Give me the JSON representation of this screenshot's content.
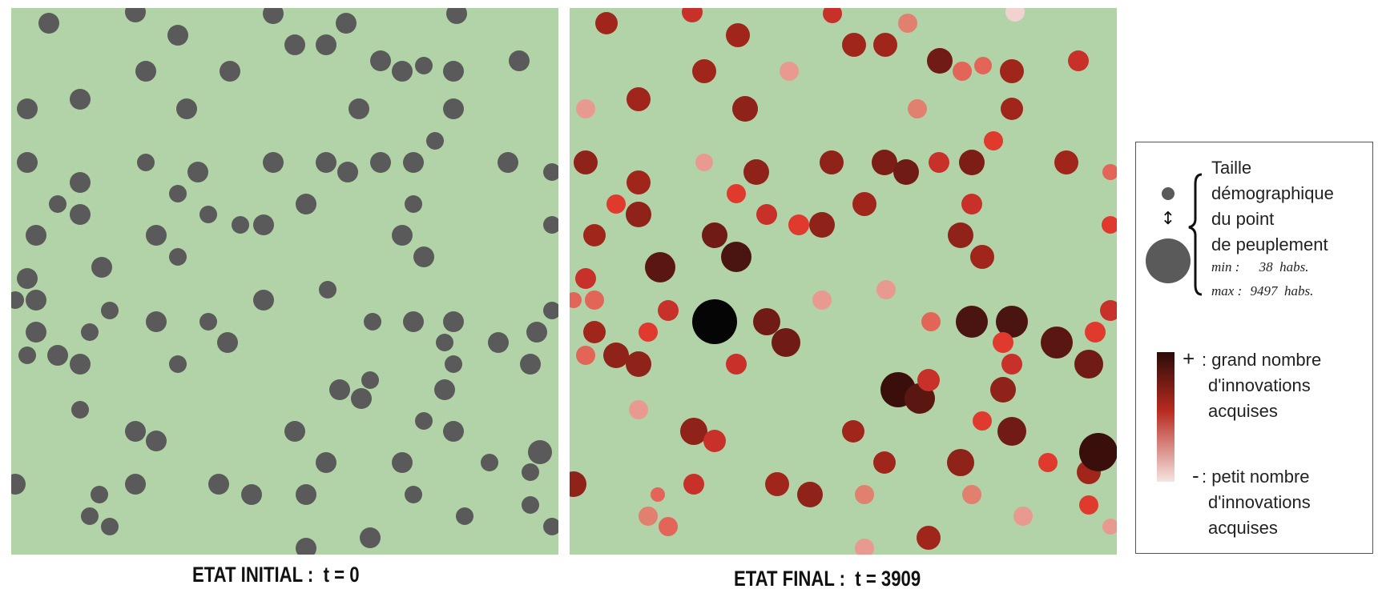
{
  "panels": {
    "initial": {
      "caption_label": "ETAT INITIAL :",
      "caption_value": "t = 0",
      "dot_color": "#5a5a5a",
      "background": "#b1d3a7",
      "points": [
        [
          47,
          19,
          13
        ],
        [
          155,
          5,
          13
        ],
        [
          208,
          34,
          13
        ],
        [
          327,
          7,
          13
        ],
        [
          354,
          46,
          13
        ],
        [
          393,
          46,
          13
        ],
        [
          418,
          19,
          13
        ],
        [
          556,
          7,
          13
        ],
        [
          168,
          79,
          13
        ],
        [
          273,
          79,
          13
        ],
        [
          461,
          66,
          13
        ],
        [
          488,
          79,
          13
        ],
        [
          515,
          72,
          11
        ],
        [
          552,
          79,
          13
        ],
        [
          634,
          66,
          13
        ],
        [
          20,
          126,
          13
        ],
        [
          86,
          114,
          13
        ],
        [
          219,
          126,
          13
        ],
        [
          434,
          126,
          13
        ],
        [
          552,
          126,
          13
        ],
        [
          20,
          193,
          13
        ],
        [
          168,
          193,
          11
        ],
        [
          233,
          205,
          13
        ],
        [
          327,
          193,
          13
        ],
        [
          393,
          193,
          13
        ],
        [
          420,
          205,
          13
        ],
        [
          461,
          193,
          13
        ],
        [
          502,
          193,
          13
        ],
        [
          529,
          166,
          11
        ],
        [
          620,
          193,
          13
        ],
        [
          675,
          205,
          11
        ],
        [
          86,
          218,
          13
        ],
        [
          58,
          245,
          11
        ],
        [
          86,
          258,
          13
        ],
        [
          208,
          232,
          11
        ],
        [
          246,
          258,
          11
        ],
        [
          286,
          271,
          11
        ],
        [
          315,
          271,
          13
        ],
        [
          368,
          245,
          13
        ],
        [
          502,
          245,
          11
        ],
        [
          31,
          284,
          13
        ],
        [
          181,
          284,
          13
        ],
        [
          208,
          311,
          11
        ],
        [
          488,
          284,
          13
        ],
        [
          515,
          311,
          13
        ],
        [
          675,
          271,
          11
        ],
        [
          113,
          324,
          13
        ],
        [
          20,
          338,
          13
        ],
        [
          395,
          352,
          11
        ],
        [
          31,
          365,
          13
        ],
        [
          315,
          365,
          13
        ],
        [
          5,
          365,
          11
        ],
        [
          123,
          378,
          11
        ],
        [
          181,
          392,
          13
        ],
        [
          246,
          392,
          11
        ],
        [
          451,
          392,
          11
        ],
        [
          502,
          392,
          13
        ],
        [
          552,
          392,
          13
        ],
        [
          675,
          378,
          11
        ],
        [
          31,
          405,
          13
        ],
        [
          98,
          405,
          11
        ],
        [
          270,
          418,
          13
        ],
        [
          20,
          434,
          11
        ],
        [
          58,
          434,
          13
        ],
        [
          86,
          445,
          13
        ],
        [
          208,
          445,
          11
        ],
        [
          541,
          418,
          11
        ],
        [
          608,
          418,
          13
        ],
        [
          656,
          405,
          13
        ],
        [
          552,
          445,
          11
        ],
        [
          648,
          445,
          13
        ],
        [
          410,
          477,
          13
        ],
        [
          437,
          488,
          13
        ],
        [
          448,
          465,
          11
        ],
        [
          541,
          477,
          13
        ],
        [
          86,
          502,
          11
        ],
        [
          155,
          529,
          13
        ],
        [
          181,
          541,
          13
        ],
        [
          354,
          529,
          13
        ],
        [
          515,
          516,
          11
        ],
        [
          552,
          529,
          13
        ],
        [
          5,
          595,
          13
        ],
        [
          110,
          608,
          11
        ],
        [
          98,
          635,
          11
        ],
        [
          123,
          648,
          11
        ],
        [
          155,
          595,
          13
        ],
        [
          259,
          595,
          13
        ],
        [
          300,
          608,
          13
        ],
        [
          368,
          608,
          13
        ],
        [
          393,
          568,
          13
        ],
        [
          488,
          568,
          13
        ],
        [
          502,
          608,
          11
        ],
        [
          597,
          568,
          11
        ],
        [
          648,
          580,
          11
        ],
        [
          660,
          555,
          15
        ],
        [
          566,
          635,
          11
        ],
        [
          648,
          621,
          11
        ],
        [
          675,
          648,
          11
        ],
        [
          368,
          675,
          13
        ],
        [
          448,
          662,
          13
        ]
      ]
    },
    "final": {
      "caption_label": "ETAT FINAL :",
      "caption_value": "t = 3909",
      "background": "#b1d3a7",
      "points": [
        [
          46,
          19,
          14,
          "#a0261c"
        ],
        [
          153,
          5,
          13,
          "#c8302a"
        ],
        [
          210,
          34,
          15,
          "#a0261c"
        ],
        [
          328,
          7,
          12,
          "#c8302a"
        ],
        [
          355,
          46,
          15,
          "#a0261c"
        ],
        [
          394,
          46,
          15,
          "#a0261c"
        ],
        [
          422,
          19,
          12,
          "#e28070"
        ],
        [
          556,
          5,
          12,
          "#f2d2cf"
        ],
        [
          168,
          79,
          15,
          "#a0261c"
        ],
        [
          274,
          79,
          12,
          "#e89a90"
        ],
        [
          462,
          66,
          16,
          "#701b15"
        ],
        [
          490,
          79,
          12,
          "#e26558"
        ],
        [
          516,
          72,
          11,
          "#e26558"
        ],
        [
          552,
          79,
          15,
          "#a0261c"
        ],
        [
          635,
          66,
          13,
          "#c8302a"
        ],
        [
          20,
          126,
          12,
          "#e89a90"
        ],
        [
          86,
          114,
          15,
          "#a0261c"
        ],
        [
          219,
          126,
          16,
          "#8f2219"
        ],
        [
          434,
          126,
          12,
          "#e28070"
        ],
        [
          552,
          126,
          14,
          "#a0261c"
        ],
        [
          20,
          193,
          15,
          "#8f2219"
        ],
        [
          168,
          193,
          11,
          "#e89a90"
        ],
        [
          233,
          205,
          16,
          "#8f2219"
        ],
        [
          327,
          193,
          15,
          "#8f2219"
        ],
        [
          393,
          193,
          16,
          "#7d1e16"
        ],
        [
          420,
          205,
          16,
          "#701b15"
        ],
        [
          461,
          193,
          13,
          "#c8302a"
        ],
        [
          502,
          193,
          16,
          "#7d1e16"
        ],
        [
          529,
          166,
          12,
          "#e03a2e"
        ],
        [
          620,
          193,
          15,
          "#a0261c"
        ],
        [
          675,
          205,
          10,
          "#e26558"
        ],
        [
          86,
          218,
          15,
          "#a0261c"
        ],
        [
          58,
          245,
          12,
          "#e03a2e"
        ],
        [
          86,
          258,
          16,
          "#8f2219"
        ],
        [
          208,
          232,
          12,
          "#e03a2e"
        ],
        [
          246,
          258,
          13,
          "#c8302a"
        ],
        [
          286,
          271,
          13,
          "#e03a2e"
        ],
        [
          315,
          271,
          16,
          "#8f2219"
        ],
        [
          368,
          245,
          15,
          "#a0261c"
        ],
        [
          502,
          245,
          13,
          "#c8302a"
        ],
        [
          31,
          284,
          14,
          "#a0261c"
        ],
        [
          181,
          284,
          16,
          "#701b15"
        ],
        [
          208,
          311,
          19,
          "#4a1410"
        ],
        [
          488,
          284,
          16,
          "#8f2219"
        ],
        [
          515,
          311,
          15,
          "#a0261c"
        ],
        [
          675,
          271,
          11,
          "#e03a2e"
        ],
        [
          113,
          324,
          19,
          "#5a1712"
        ],
        [
          20,
          338,
          13,
          "#c8302a"
        ],
        [
          395,
          352,
          12,
          "#e89a90"
        ],
        [
          31,
          365,
          12,
          "#e26558"
        ],
        [
          315,
          365,
          12,
          "#e89a90"
        ],
        [
          5,
          365,
          10,
          "#e26558"
        ],
        [
          123,
          378,
          13,
          "#c8302a"
        ],
        [
          181,
          392,
          28,
          "#050505"
        ],
        [
          246,
          392,
          17,
          "#701b15"
        ],
        [
          451,
          392,
          12,
          "#e26558"
        ],
        [
          502,
          392,
          20,
          "#4a1410"
        ],
        [
          552,
          392,
          20,
          "#4a1410"
        ],
        [
          675,
          378,
          13,
          "#c8302a"
        ],
        [
          31,
          405,
          14,
          "#a0261c"
        ],
        [
          98,
          405,
          12,
          "#e03a2e"
        ],
        [
          270,
          418,
          18,
          "#701b15"
        ],
        [
          20,
          434,
          12,
          "#e26558"
        ],
        [
          58,
          434,
          16,
          "#8f2219"
        ],
        [
          86,
          445,
          16,
          "#8f2219"
        ],
        [
          208,
          445,
          13,
          "#c8302a"
        ],
        [
          541,
          418,
          13,
          "#e03a2e"
        ],
        [
          608,
          418,
          20,
          "#5a1712"
        ],
        [
          656,
          405,
          13,
          "#e03a2e"
        ],
        [
          552,
          445,
          13,
          "#c8302a"
        ],
        [
          648,
          445,
          18,
          "#701b15"
        ],
        [
          410,
          477,
          22,
          "#3a0f0b"
        ],
        [
          437,
          488,
          19,
          "#5a1712"
        ],
        [
          448,
          465,
          14,
          "#c8302a"
        ],
        [
          541,
          477,
          16,
          "#8f2219"
        ],
        [
          86,
          502,
          12,
          "#e89a90"
        ],
        [
          155,
          529,
          17,
          "#8f2219"
        ],
        [
          181,
          541,
          14,
          "#c8302a"
        ],
        [
          354,
          529,
          14,
          "#a0261c"
        ],
        [
          515,
          516,
          12,
          "#e03a2e"
        ],
        [
          552,
          529,
          18,
          "#701b15"
        ],
        [
          5,
          595,
          16,
          "#8f2219"
        ],
        [
          110,
          608,
          9,
          "#e26558"
        ],
        [
          98,
          635,
          12,
          "#e28070"
        ],
        [
          123,
          648,
          12,
          "#e26558"
        ],
        [
          155,
          595,
          13,
          "#c8302a"
        ],
        [
          259,
          595,
          15,
          "#a0261c"
        ],
        [
          300,
          608,
          16,
          "#8f2219"
        ],
        [
          368,
          608,
          12,
          "#e28070"
        ],
        [
          393,
          568,
          14,
          "#a0261c"
        ],
        [
          488,
          568,
          17,
          "#8f2219"
        ],
        [
          502,
          608,
          12,
          "#e28070"
        ],
        [
          597,
          568,
          12,
          "#e03a2e"
        ],
        [
          648,
          580,
          15,
          "#a0261c"
        ],
        [
          660,
          555,
          24,
          "#3a0f0b"
        ],
        [
          566,
          635,
          12,
          "#e89a90"
        ],
        [
          648,
          621,
          12,
          "#e03a2e"
        ],
        [
          675,
          648,
          10,
          "#e89a90"
        ],
        [
          368,
          675,
          12,
          "#e89a90"
        ],
        [
          448,
          662,
          15,
          "#a0261c"
        ]
      ]
    }
  },
  "legend": {
    "size_title_lines": [
      "Taille",
      "démographique",
      "du point",
      "de peuplement"
    ],
    "min_label": "min :",
    "min_value": "38  habs.",
    "max_label": "max :",
    "max_value": "9497  habs.",
    "arrow_glyph": "↕",
    "plus_sign": "+",
    "plus_text_lines": [
      ": grand nombre",
      "d'innovations",
      "acquises"
    ],
    "minus_sign": "-",
    "minus_text_lines": [
      ": petit nombre",
      "d'innovations",
      "acquises"
    ],
    "gradient_colors": [
      "#2a0c08",
      "#b72a20",
      "#f6e4e0"
    ],
    "legend_dot_color": "#5a5a5a"
  }
}
